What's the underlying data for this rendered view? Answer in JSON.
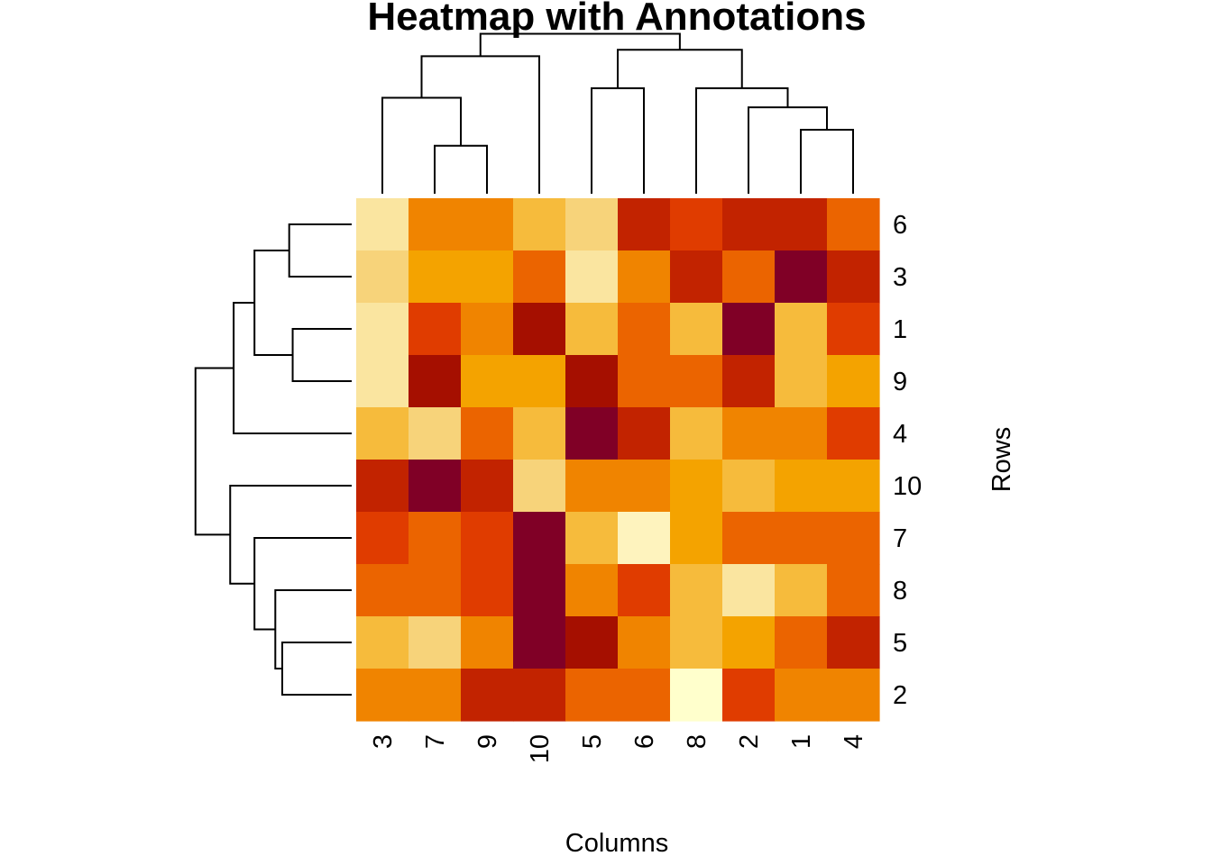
{
  "chart_data": {
    "type": "heatmap",
    "title": "Heatmap with Annotations",
    "xlabel": "Columns",
    "ylabel": "Rows",
    "legend": "none",
    "grid": false,
    "color_scale": "heat (dark red = low, pale yellow = high)",
    "column_labels": [
      "3",
      "7",
      "9",
      "10",
      "5",
      "6",
      "8",
      "2",
      "1",
      "4"
    ],
    "row_labels": [
      "6",
      "3",
      "1",
      "9",
      "4",
      "10",
      "7",
      "8",
      "5",
      "2"
    ],
    "color_levels": [
      "#800026",
      "#A50F00",
      "#C22300",
      "#E03C00",
      "#EB6400",
      "#F08400",
      "#F4A300",
      "#F6BB3C",
      "#F7D37A",
      "#FAE5A0",
      "#FEF3BE",
      "#FFFFCC"
    ],
    "values": [
      [
        9,
        5,
        5,
        7,
        8,
        2,
        3,
        2,
        2,
        4
      ],
      [
        8,
        6,
        6,
        4,
        9,
        5,
        2,
        4,
        0,
        2
      ],
      [
        9,
        3,
        5,
        1,
        7,
        4,
        7,
        0,
        7,
        3
      ],
      [
        9,
        1,
        6,
        6,
        1,
        4,
        4,
        2,
        7,
        6
      ],
      [
        7,
        8,
        4,
        7,
        0,
        2,
        7,
        5,
        5,
        3
      ],
      [
        2,
        0,
        2,
        8,
        5,
        5,
        6,
        7,
        6,
        6
      ],
      [
        3,
        4,
        3,
        0,
        7,
        10,
        6,
        4,
        4,
        4
      ],
      [
        4,
        4,
        3,
        0,
        5,
        3,
        7,
        9,
        7,
        4
      ],
      [
        7,
        8,
        5,
        0,
        1,
        5,
        7,
        6,
        4,
        2
      ],
      [
        5,
        5,
        2,
        2,
        4,
        4,
        11,
        3,
        5,
        5
      ]
    ],
    "column_dendrogram": {
      "leaf_order": [
        "3",
        "7",
        "9",
        "10",
        "5",
        "6",
        "8",
        "2",
        "1",
        "4"
      ],
      "merges": [
        {
          "left": "leaf:1",
          "right": "leaf:2",
          "height": 0.15
        },
        {
          "left": "leaf:8",
          "right": "leaf:9",
          "height": 0.2
        },
        {
          "left": "leaf:0",
          "right": "node:0",
          "height": 0.3
        },
        {
          "left": "leaf:7",
          "right": "node:1",
          "height": 0.27
        },
        {
          "left": "leaf:4",
          "right": "leaf:5",
          "height": 0.33
        },
        {
          "left": "leaf:6",
          "right": "node:3",
          "height": 0.33
        },
        {
          "left": "node:2",
          "right": "leaf:3",
          "height": 0.43
        },
        {
          "left": "node:4",
          "right": "node:5",
          "height": 0.45
        },
        {
          "left": "node:6",
          "right": "node:7",
          "height": 0.5
        }
      ]
    },
    "row_dendrogram": {
      "leaf_order": [
        "6",
        "3",
        "1",
        "9",
        "4",
        "10",
        "7",
        "8",
        "5",
        "2"
      ],
      "merges": [
        {
          "left": "leaf:8",
          "right": "leaf:9",
          "height": 0.2
        },
        {
          "left": "leaf:7",
          "right": "node:0",
          "height": 0.22
        },
        {
          "left": "leaf:0",
          "right": "leaf:1",
          "height": 0.18
        },
        {
          "left": "leaf:2",
          "right": "leaf:3",
          "height": 0.17
        },
        {
          "left": "leaf:6",
          "right": "node:1",
          "height": 0.28
        },
        {
          "left": "node:2",
          "right": "node:3",
          "height": 0.28
        },
        {
          "left": "leaf:5",
          "right": "node:4",
          "height": 0.35
        },
        {
          "left": "node:5",
          "right": "leaf:4",
          "height": 0.34
        },
        {
          "left": "node:7",
          "right": "node:6",
          "height": 0.45
        }
      ]
    }
  }
}
